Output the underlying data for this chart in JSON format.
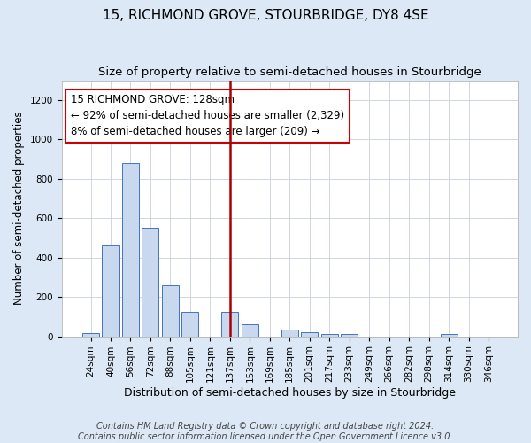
{
  "title": "15, RICHMOND GROVE, STOURBRIDGE, DY8 4SE",
  "subtitle": "Size of property relative to semi-detached houses in Stourbridge",
  "xlabel": "Distribution of semi-detached houses by size in Stourbridge",
  "ylabel": "Number of semi-detached properties",
  "footer_line1": "Contains HM Land Registry data © Crown copyright and database right 2024.",
  "footer_line2": "Contains public sector information licensed under the Open Government Licence v3.0.",
  "categories": [
    "24sqm",
    "40sqm",
    "56sqm",
    "72sqm",
    "88sqm",
    "105sqm",
    "121sqm",
    "137sqm",
    "153sqm",
    "169sqm",
    "185sqm",
    "201sqm",
    "217sqm",
    "233sqm",
    "249sqm",
    "266sqm",
    "282sqm",
    "298sqm",
    "314sqm",
    "330sqm",
    "346sqm"
  ],
  "values": [
    15,
    460,
    880,
    550,
    260,
    125,
    0,
    125,
    62,
    0,
    35,
    20,
    10,
    10,
    0,
    0,
    0,
    0,
    10,
    0,
    0
  ],
  "bar_color": "#c8d8ee",
  "bar_edge_color": "#4472c4",
  "vline_x_index": 7,
  "vline_color": "#aa0000",
  "annotation_text_line1": "15 RICHMOND GROVE: 128sqm",
  "annotation_text_line2": "← 92% of semi-detached houses are smaller (2,329)",
  "annotation_text_line3": "8% of semi-detached houses are larger (209) →",
  "annotation_box_color": "white",
  "annotation_box_edge_color": "#cc0000",
  "ylim": [
    0,
    1300
  ],
  "yticks": [
    0,
    200,
    400,
    600,
    800,
    1000,
    1200
  ],
  "figure_background_color": "#dce8f5",
  "plot_background_color": "#ffffff",
  "grid_color": "#c8d0dc",
  "title_fontsize": 11,
  "subtitle_fontsize": 9.5,
  "xlabel_fontsize": 9,
  "ylabel_fontsize": 8.5,
  "tick_fontsize": 7.5,
  "annotation_fontsize": 8.5,
  "footer_fontsize": 7
}
